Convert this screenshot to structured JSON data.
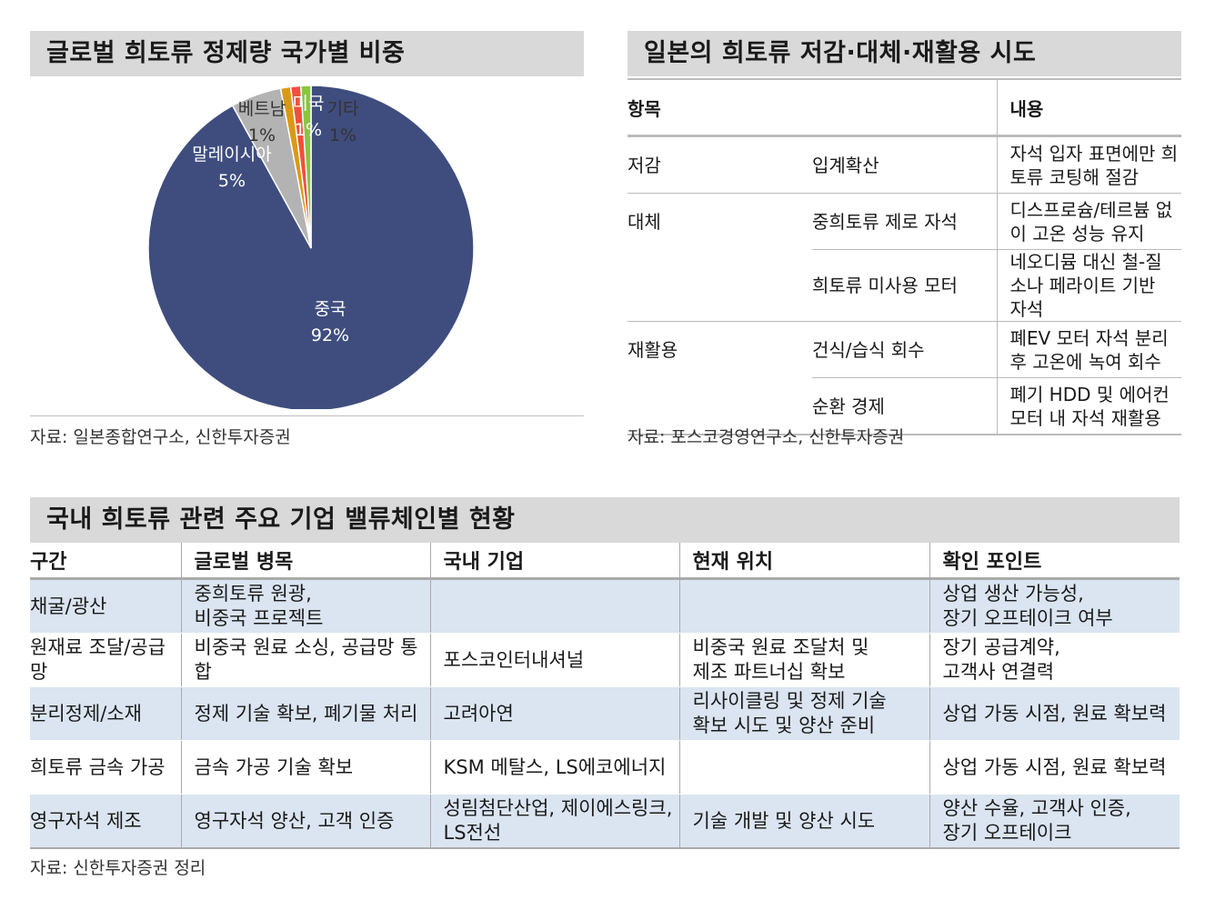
{
  "pie_panel": {
    "title": "글로벌 희토류 정제량 국가별 비중",
    "source": "자료: 일본종합연구소, 신한투자증권"
  },
  "chart_data": {
    "type": "pie",
    "slices": [
      {
        "label": "중국",
        "value": 92,
        "value_label": "92%",
        "color": "#3f4d7e"
      },
      {
        "label": "말레이시아",
        "value": 5,
        "value_label": "5%",
        "color": "#b3b3b3"
      },
      {
        "label": "베트남",
        "value": 1,
        "value_label": "1%",
        "color": "#d89a16"
      },
      {
        "label": "미국",
        "value": 1,
        "value_label": "1%",
        "color": "#f0503c"
      },
      {
        "label": "기타",
        "value": 1,
        "value_label": "1%",
        "color": "#8ac540"
      }
    ]
  },
  "japan_panel": {
    "title": "일본의 희토류 저감·대체·재활용 시도",
    "headers": {
      "item": "항목",
      "content": "내용"
    },
    "rows": [
      {
        "category": "저감",
        "item": "입계확산",
        "content": "자석 입자 표면에만 희토류 코팅해 절감"
      },
      {
        "category": "대체",
        "item": "중희토류 제로 자석",
        "content": "디스프로슘/테르븀 없이 고온 성능 유지"
      },
      {
        "category": "",
        "item": "희토류 미사용 모터",
        "content": "네오디뮴 대신 철-질소나 페라이트 기반 자석"
      },
      {
        "category": "재활용",
        "item": "건식/습식 회수",
        "content": "폐EV 모터 자석 분리 후 고온에 녹여 회수"
      },
      {
        "category": "",
        "item": "순환 경제",
        "content": "폐기 HDD 및 에어컨 모터 내 자석 재활용"
      }
    ],
    "source": "자료: 포스코경영연구소, 신한투자증권"
  },
  "value_chain_panel": {
    "title": "국내 희토류 관련 주요 기업 밸류체인별 현황",
    "headers": [
      "구간",
      "글로벌 병목",
      "국내 기업",
      "현재 위치",
      "확인 포인트"
    ],
    "rows": [
      {
        "stage": "채굴/광산",
        "bottleneck": "중희토류 원광,\n비중국 프로젝트",
        "companies": "",
        "status": "",
        "checkpoints": "상업 생산 가능성,\n장기 오프테이크 여부"
      },
      {
        "stage": "원재료 조달/공급망",
        "bottleneck": "비중국 원료 소싱, 공급망 통합",
        "companies": "포스코인터내셔널",
        "status": "비중국 원료 조달처 및\n제조 파트너십 확보",
        "checkpoints": "장기 공급계약,\n고객사 연결력"
      },
      {
        "stage": "분리정제/소재",
        "bottleneck": "정제 기술 확보, 폐기물 처리",
        "companies": "고려아연",
        "status": "리사이클링 및 정제 기술\n확보 시도 및 양산 준비",
        "checkpoints": "상업 가동 시점, 원료 확보력"
      },
      {
        "stage": "희토류 금속 가공",
        "bottleneck": "금속 가공 기술 확보",
        "companies": "KSM 메탈스, LS에코에너지",
        "status": "",
        "checkpoints": "상업 가동 시점, 원료 확보력"
      },
      {
        "stage": "영구자석 제조",
        "bottleneck": "영구자석 양산, 고객 인증",
        "companies": "성림첨단산업, 제이에스링크,\nLS전선",
        "status": "기술 개발 및 양산 시도",
        "checkpoints": "양산 수율, 고객사 인증,\n장기 오프테이크"
      }
    ],
    "source": "자료: 신한투자증권 정리"
  }
}
